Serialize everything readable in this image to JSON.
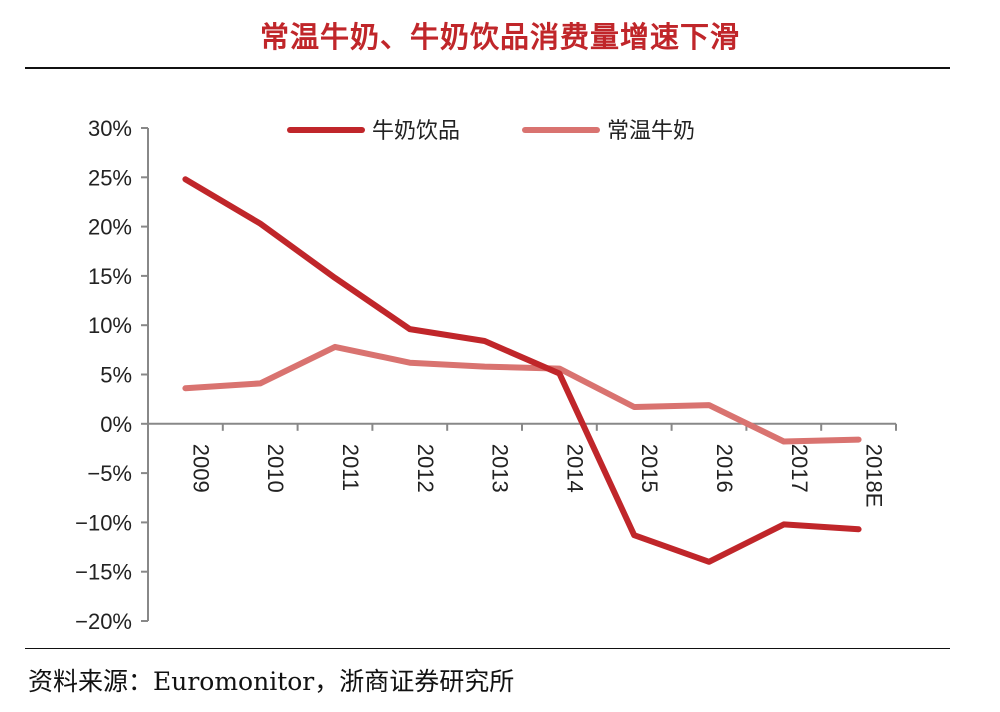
{
  "header": {
    "title": "常温牛奶、牛奶饮品消费量增速下滑"
  },
  "footer": {
    "source": "资料来源：Euromonitor，浙商证券研究所"
  },
  "chart_data": {
    "type": "line",
    "title": "常温牛奶、牛奶饮品消费量增速下滑",
    "xlabel": "",
    "ylabel": "",
    "categories": [
      "2009",
      "2010",
      "2011",
      "2012",
      "2013",
      "2014",
      "2015",
      "2016",
      "2017",
      "2018E"
    ],
    "y_tick_labels": [
      "30%",
      "25%",
      "20%",
      "15%",
      "10%",
      "5%",
      "0%",
      "−5%",
      "−10%",
      "−15%",
      "−20%"
    ],
    "ylim": [
      -20,
      30
    ],
    "y_step": 5,
    "grid": false,
    "legend_position": "top-center",
    "series": [
      {
        "name": "牛奶饮品",
        "color": "#c0262a",
        "values": [
          24.8,
          20.3,
          14.8,
          9.6,
          8.4,
          5.1,
          -11.3,
          -14.0,
          -10.2,
          -10.7
        ]
      },
      {
        "name": "常温牛奶",
        "color": "#d97370",
        "values": [
          3.6,
          4.1,
          7.8,
          6.2,
          5.8,
          5.6,
          1.7,
          1.9,
          -1.8,
          -1.6
        ]
      }
    ]
  }
}
